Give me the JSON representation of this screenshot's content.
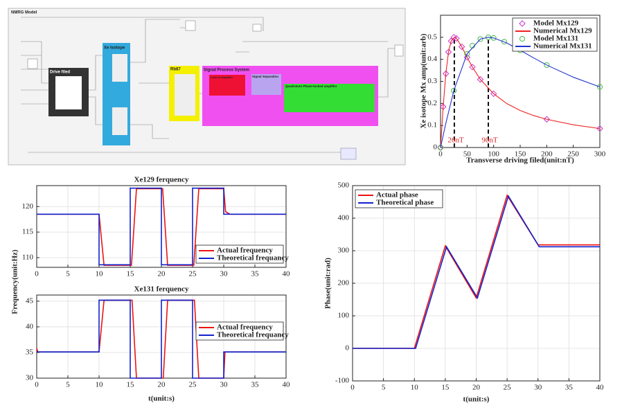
{
  "diagram": {
    "title": "NMRG Model",
    "blocks": [
      "Drive filed",
      "Xe Isotope",
      "Rb87",
      "Signal Process System",
      "Lock-in amplifier",
      "Signal Separation",
      "Quadrature Phase-locked amplifier"
    ]
  },
  "chart_data": [
    {
      "type": "line",
      "xlabel": "Transverse driving filed(unit:nT)",
      "ylabel": "Xe isotope Mx amp(unit:arb)",
      "xlim": [
        0,
        300
      ],
      "ylim": [
        0,
        0.6
      ],
      "xticks": [
        0,
        50,
        100,
        150,
        200,
        250,
        300
      ],
      "yticks": [
        0,
        0.1,
        0.2,
        0.3,
        0.4,
        0.5
      ],
      "grid": false,
      "legend": "upper right",
      "annotations": [
        {
          "text": "26nT",
          "x": 26,
          "y": 0.5
        },
        {
          "text": "90nT",
          "x": 90,
          "y": 0.5
        }
      ],
      "series": [
        {
          "name": "Model Mx129",
          "color": "#cc33cc",
          "marker": "diamond",
          "x": [
            0,
            5,
            10,
            15,
            20,
            25,
            30,
            40,
            50,
            60,
            75,
            100,
            200,
            300
          ],
          "values": [
            0,
            0.185,
            0.335,
            0.433,
            0.483,
            0.5,
            0.495,
            0.457,
            0.409,
            0.365,
            0.309,
            0.244,
            0.128,
            0.086
          ]
        },
        {
          "name": "Numerical Mx129",
          "color": "#ee2222",
          "x": [
            0,
            5,
            10,
            15,
            20,
            26,
            30,
            40,
            50,
            60,
            75,
            100,
            125,
            150,
            175,
            200,
            250,
            300
          ],
          "values": [
            0,
            0.185,
            0.335,
            0.433,
            0.483,
            0.5,
            0.495,
            0.457,
            0.409,
            0.365,
            0.309,
            0.244,
            0.199,
            0.168,
            0.145,
            0.128,
            0.103,
            0.086
          ]
        },
        {
          "name": "Model Mx131",
          "color": "#44bb44",
          "marker": "circle",
          "x": [
            0,
            25,
            50,
            60,
            75,
            90,
            100,
            120,
            150,
            200,
            300
          ],
          "values": [
            0,
            0.258,
            0.425,
            0.462,
            0.492,
            0.5,
            0.497,
            0.48,
            0.441,
            0.374,
            0.275
          ]
        },
        {
          "name": "Numerical Mx131",
          "color": "#2233cc",
          "x": [
            0,
            10,
            25,
            50,
            75,
            90,
            100,
            125,
            150,
            175,
            200,
            250,
            300
          ],
          "values": [
            0,
            0.11,
            0.258,
            0.425,
            0.492,
            0.5,
            0.497,
            0.474,
            0.441,
            0.407,
            0.374,
            0.319,
            0.275
          ]
        }
      ]
    },
    {
      "type": "line",
      "title": "Xe129 ferquency",
      "ylabel": "Frequency(unit:Hz)",
      "xlim": [
        0,
        40
      ],
      "ylim": [
        108.1,
        124.1
      ],
      "xticks": [
        0,
        5,
        10,
        15,
        20,
        25,
        30,
        35,
        40
      ],
      "yticks": [
        110,
        115,
        120
      ],
      "grid": true,
      "legend": "lower right",
      "series": [
        {
          "name": "Actual frequency",
          "color": "#ee1111",
          "x": [
            0,
            10,
            10.8,
            15,
            15.2,
            16,
            20,
            20.2,
            21,
            25,
            25.2,
            26,
            30,
            30.3,
            31,
            40
          ],
          "values": [
            118.5,
            118.5,
            108.5,
            108.5,
            108.5,
            123.5,
            123.5,
            123.5,
            108.5,
            108.5,
            108.5,
            123.5,
            123.5,
            119,
            118.5,
            118.5
          ]
        },
        {
          "name": "Theoretical frequancy",
          "color": "#1122cc",
          "x": [
            0,
            10,
            10,
            15,
            15,
            20,
            20,
            25,
            25,
            30,
            30,
            40
          ],
          "values": [
            118.5,
            118.5,
            108.6,
            108.6,
            123.6,
            123.6,
            108.6,
            108.6,
            123.6,
            123.6,
            118.5,
            118.5
          ]
        }
      ]
    },
    {
      "type": "line",
      "title": "Xe131 ferquency",
      "xlabel": "t(unit:s)",
      "xlim": [
        0,
        40
      ],
      "ylim": [
        30,
        46.2
      ],
      "xticks": [
        0,
        5,
        10,
        15,
        20,
        25,
        30,
        35,
        40
      ],
      "yticks": [
        30,
        35,
        40,
        45
      ],
      "grid": true,
      "legend": "right",
      "series": [
        {
          "name": "Actual frequency",
          "color": "#ee1111",
          "x": [
            0,
            0.2,
            10,
            10.8,
            15,
            15.3,
            16,
            20,
            20.3,
            21,
            25,
            25.3,
            26,
            30,
            30.2,
            40
          ],
          "values": [
            35.8,
            35.1,
            35.1,
            45.2,
            45.2,
            45.2,
            30,
            30,
            30,
            45.2,
            45.2,
            45.2,
            30,
            30,
            35.1,
            35.1
          ]
        },
        {
          "name": "Theoretical frequancy",
          "color": "#1122cc",
          "x": [
            0,
            10,
            10,
            15,
            15,
            20,
            20,
            25,
            25,
            30,
            30,
            40
          ],
          "values": [
            35.1,
            35.1,
            45.2,
            45.2,
            30,
            30,
            45.2,
            45.2,
            30,
            30,
            35.1,
            35.1
          ]
        }
      ]
    },
    {
      "type": "line",
      "xlabel": "t(unit:s)",
      "ylabel": "Phase(unit:rad)",
      "xlim": [
        0,
        40
      ],
      "ylim": [
        -100,
        500
      ],
      "xticks": [
        0,
        5,
        10,
        15,
        20,
        25,
        30,
        35,
        40
      ],
      "yticks": [
        -100,
        0,
        100,
        200,
        300,
        400,
        500
      ],
      "grid": true,
      "legend": "upper left",
      "series": [
        {
          "name": "Actual phase",
          "color": "#ee1111",
          "x": [
            0,
            10,
            15,
            20,
            25,
            30,
            40
          ],
          "values": [
            0,
            0,
            315,
            155,
            470,
            318,
            318
          ]
        },
        {
          "name": "Theoretical phase",
          "color": "#1122cc",
          "x": [
            0,
            10.2,
            15.2,
            20.2,
            25.2,
            30.2,
            40
          ],
          "values": [
            0,
            0,
            312,
            155,
            468,
            312,
            312
          ]
        }
      ]
    }
  ]
}
